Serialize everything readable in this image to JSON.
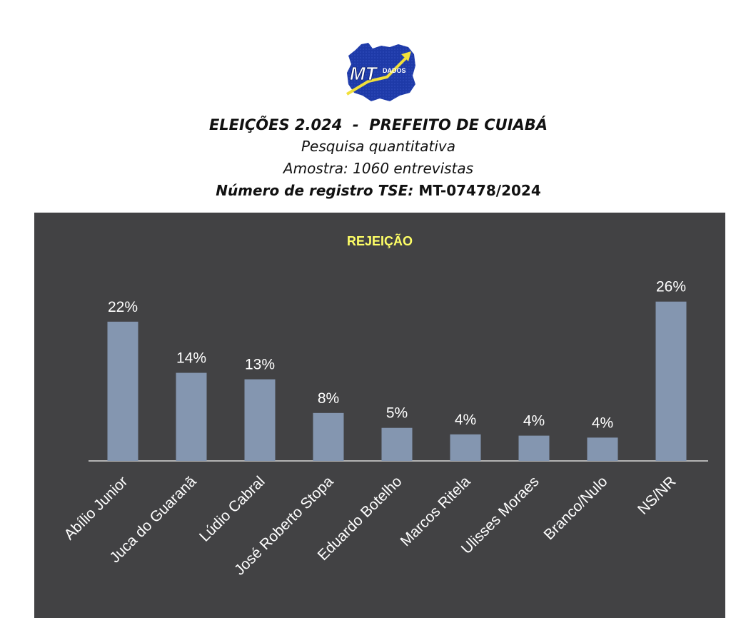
{
  "header": {
    "title": "ELEIÇÕES 2.024  -  PREFEITO DE CUIABÁ",
    "subtitle1": "Pesquisa quantitativa",
    "subtitle2": "Amostra: 1060 entrevistas",
    "reg_label": "Número de registro TSE",
    "reg_sep": ":",
    "reg_value": "MT-07478/2024"
  },
  "logo": {
    "text_main": "MT",
    "text_sub": "DADOS",
    "color_blue": "#1e3aa8",
    "color_arrow": "#f2e03a"
  },
  "chart_data": {
    "type": "bar",
    "title": "REJEIÇÃO",
    "categories": [
      "Abílio Junior",
      "Juca do Guaranã",
      "Lúdio Cabral",
      "José Roberto Stopa",
      "Eduardo Botelho",
      "Marcos Ritela",
      "Ulisses Moraes",
      "Branco/Nulo",
      "NS/NR"
    ],
    "values": [
      22,
      14,
      13,
      8,
      5,
      4,
      4,
      4,
      26
    ],
    "value_labels": [
      "22%",
      "14%",
      "13%",
      "8%",
      "5%",
      "4%",
      "4%",
      "4%",
      "26%"
    ],
    "heights": [
      21.5,
      13.6,
      12.6,
      7.4,
      5.1,
      4.1,
      3.9,
      3.6,
      24.6
    ],
    "ylim": [
      0,
      30
    ],
    "grid": false,
    "legend": "none",
    "colors": {
      "background": "#424244",
      "bar": "#8496b0",
      "title": "#ffff66",
      "text": "#ffffff",
      "axis": "#d9d9d9"
    }
  }
}
